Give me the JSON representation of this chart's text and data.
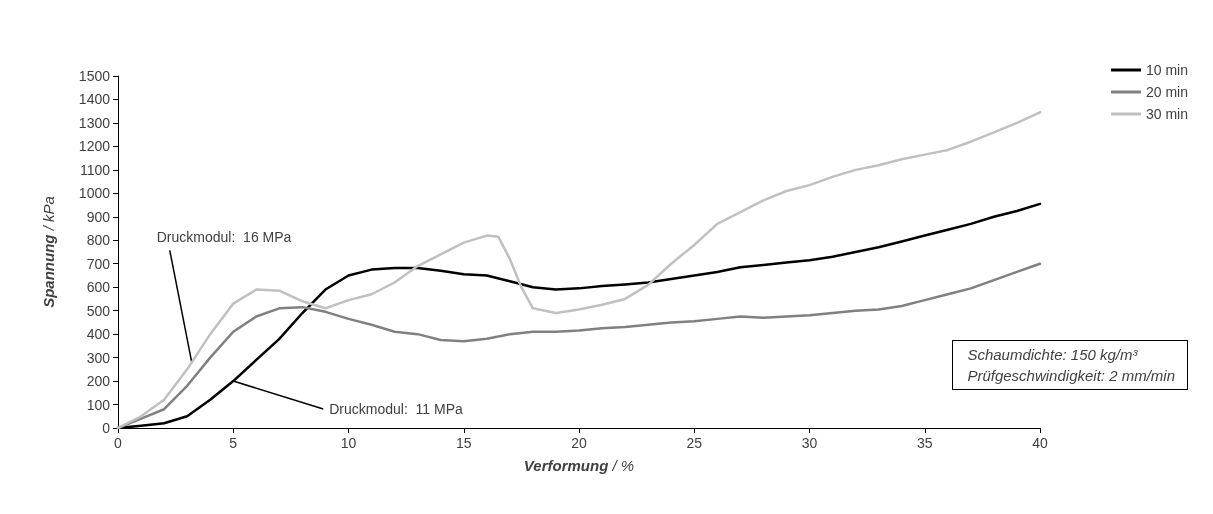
{
  "chart_data": {
    "type": "line",
    "xlabel": "Verformung / %",
    "ylabel": "Spannung / kPa",
    "xlim": [
      0,
      40
    ],
    "xticks": [
      0,
      5,
      10,
      15,
      20,
      25,
      30,
      35,
      40
    ],
    "ylim": [
      0,
      1500
    ],
    "yticks": [
      0,
      100,
      200,
      300,
      400,
      500,
      600,
      700,
      800,
      900,
      1000,
      1100,
      1200,
      1300,
      1400,
      1500
    ],
    "grid": false,
    "legend": "top right",
    "marker": "none",
    "line_style": "solid",
    "series": [
      {
        "name": "10 min",
        "color": "#000000",
        "x": [
          0,
          1,
          2,
          3,
          4,
          5,
          6,
          7,
          8,
          9,
          10,
          11,
          12,
          13,
          14,
          15,
          16,
          17,
          18,
          19,
          20,
          21,
          22,
          23,
          24,
          25,
          26,
          27,
          28,
          29,
          30,
          31,
          32,
          33,
          34,
          35,
          36,
          37,
          38,
          39,
          40
        ],
        "values": [
          0,
          10,
          20,
          50,
          120,
          200,
          290,
          380,
          490,
          590,
          650,
          675,
          682,
          682,
          670,
          655,
          650,
          625,
          600,
          590,
          595,
          605,
          612,
          620,
          635,
          650,
          665,
          685,
          695,
          705,
          715,
          730,
          750,
          770,
          795,
          820,
          845,
          870,
          900,
          925,
          955
        ]
      },
      {
        "name": "20 min",
        "color": "#808080",
        "x": [
          0,
          1,
          2,
          3,
          4,
          5,
          6,
          7,
          8,
          9,
          10,
          11,
          12,
          13,
          14,
          15,
          16,
          17,
          18,
          19,
          20,
          21,
          22,
          23,
          24,
          25,
          26,
          27,
          28,
          29,
          30,
          31,
          32,
          33,
          34,
          35,
          36,
          37,
          38,
          39,
          40
        ],
        "values": [
          0,
          40,
          80,
          180,
          300,
          410,
          475,
          510,
          515,
          495,
          465,
          440,
          410,
          400,
          375,
          370,
          380,
          400,
          410,
          410,
          415,
          425,
          430,
          440,
          450,
          455,
          465,
          475,
          470,
          475,
          480,
          490,
          500,
          505,
          520,
          545,
          570,
          595,
          630,
          665,
          700
        ]
      },
      {
        "name": "30 min",
        "color": "#c0c0c0",
        "x": [
          0,
          1,
          2,
          3,
          4,
          5,
          6,
          7,
          8,
          9,
          10,
          11,
          12,
          13,
          14,
          15,
          16,
          16.5,
          17,
          17.5,
          18,
          19,
          20,
          21,
          22,
          23,
          24,
          25,
          26,
          27,
          28,
          29,
          30,
          31,
          32,
          33,
          34,
          35,
          36,
          37,
          38,
          39,
          40
        ],
        "values": [
          0,
          50,
          120,
          250,
          400,
          530,
          590,
          585,
          540,
          510,
          545,
          570,
          620,
          690,
          740,
          790,
          820,
          815,
          720,
          600,
          510,
          490,
          505,
          525,
          550,
          610,
          700,
          780,
          870,
          920,
          970,
          1010,
          1035,
          1070,
          1100,
          1120,
          1145,
          1165,
          1185,
          1220,
          1260,
          1300,
          1345
        ]
      }
    ],
    "annotations": [
      {
        "text": "Druckmodul:  16 MPa",
        "x": 3.2,
        "y": 280
      },
      {
        "text": "Druckmodul:  11 MPa",
        "x": 5,
        "y": 200
      },
      "Schaumdichte: 150 kg/m³",
      "Prüfgeschwindigkeit: 2 mm/min"
    ]
  }
}
